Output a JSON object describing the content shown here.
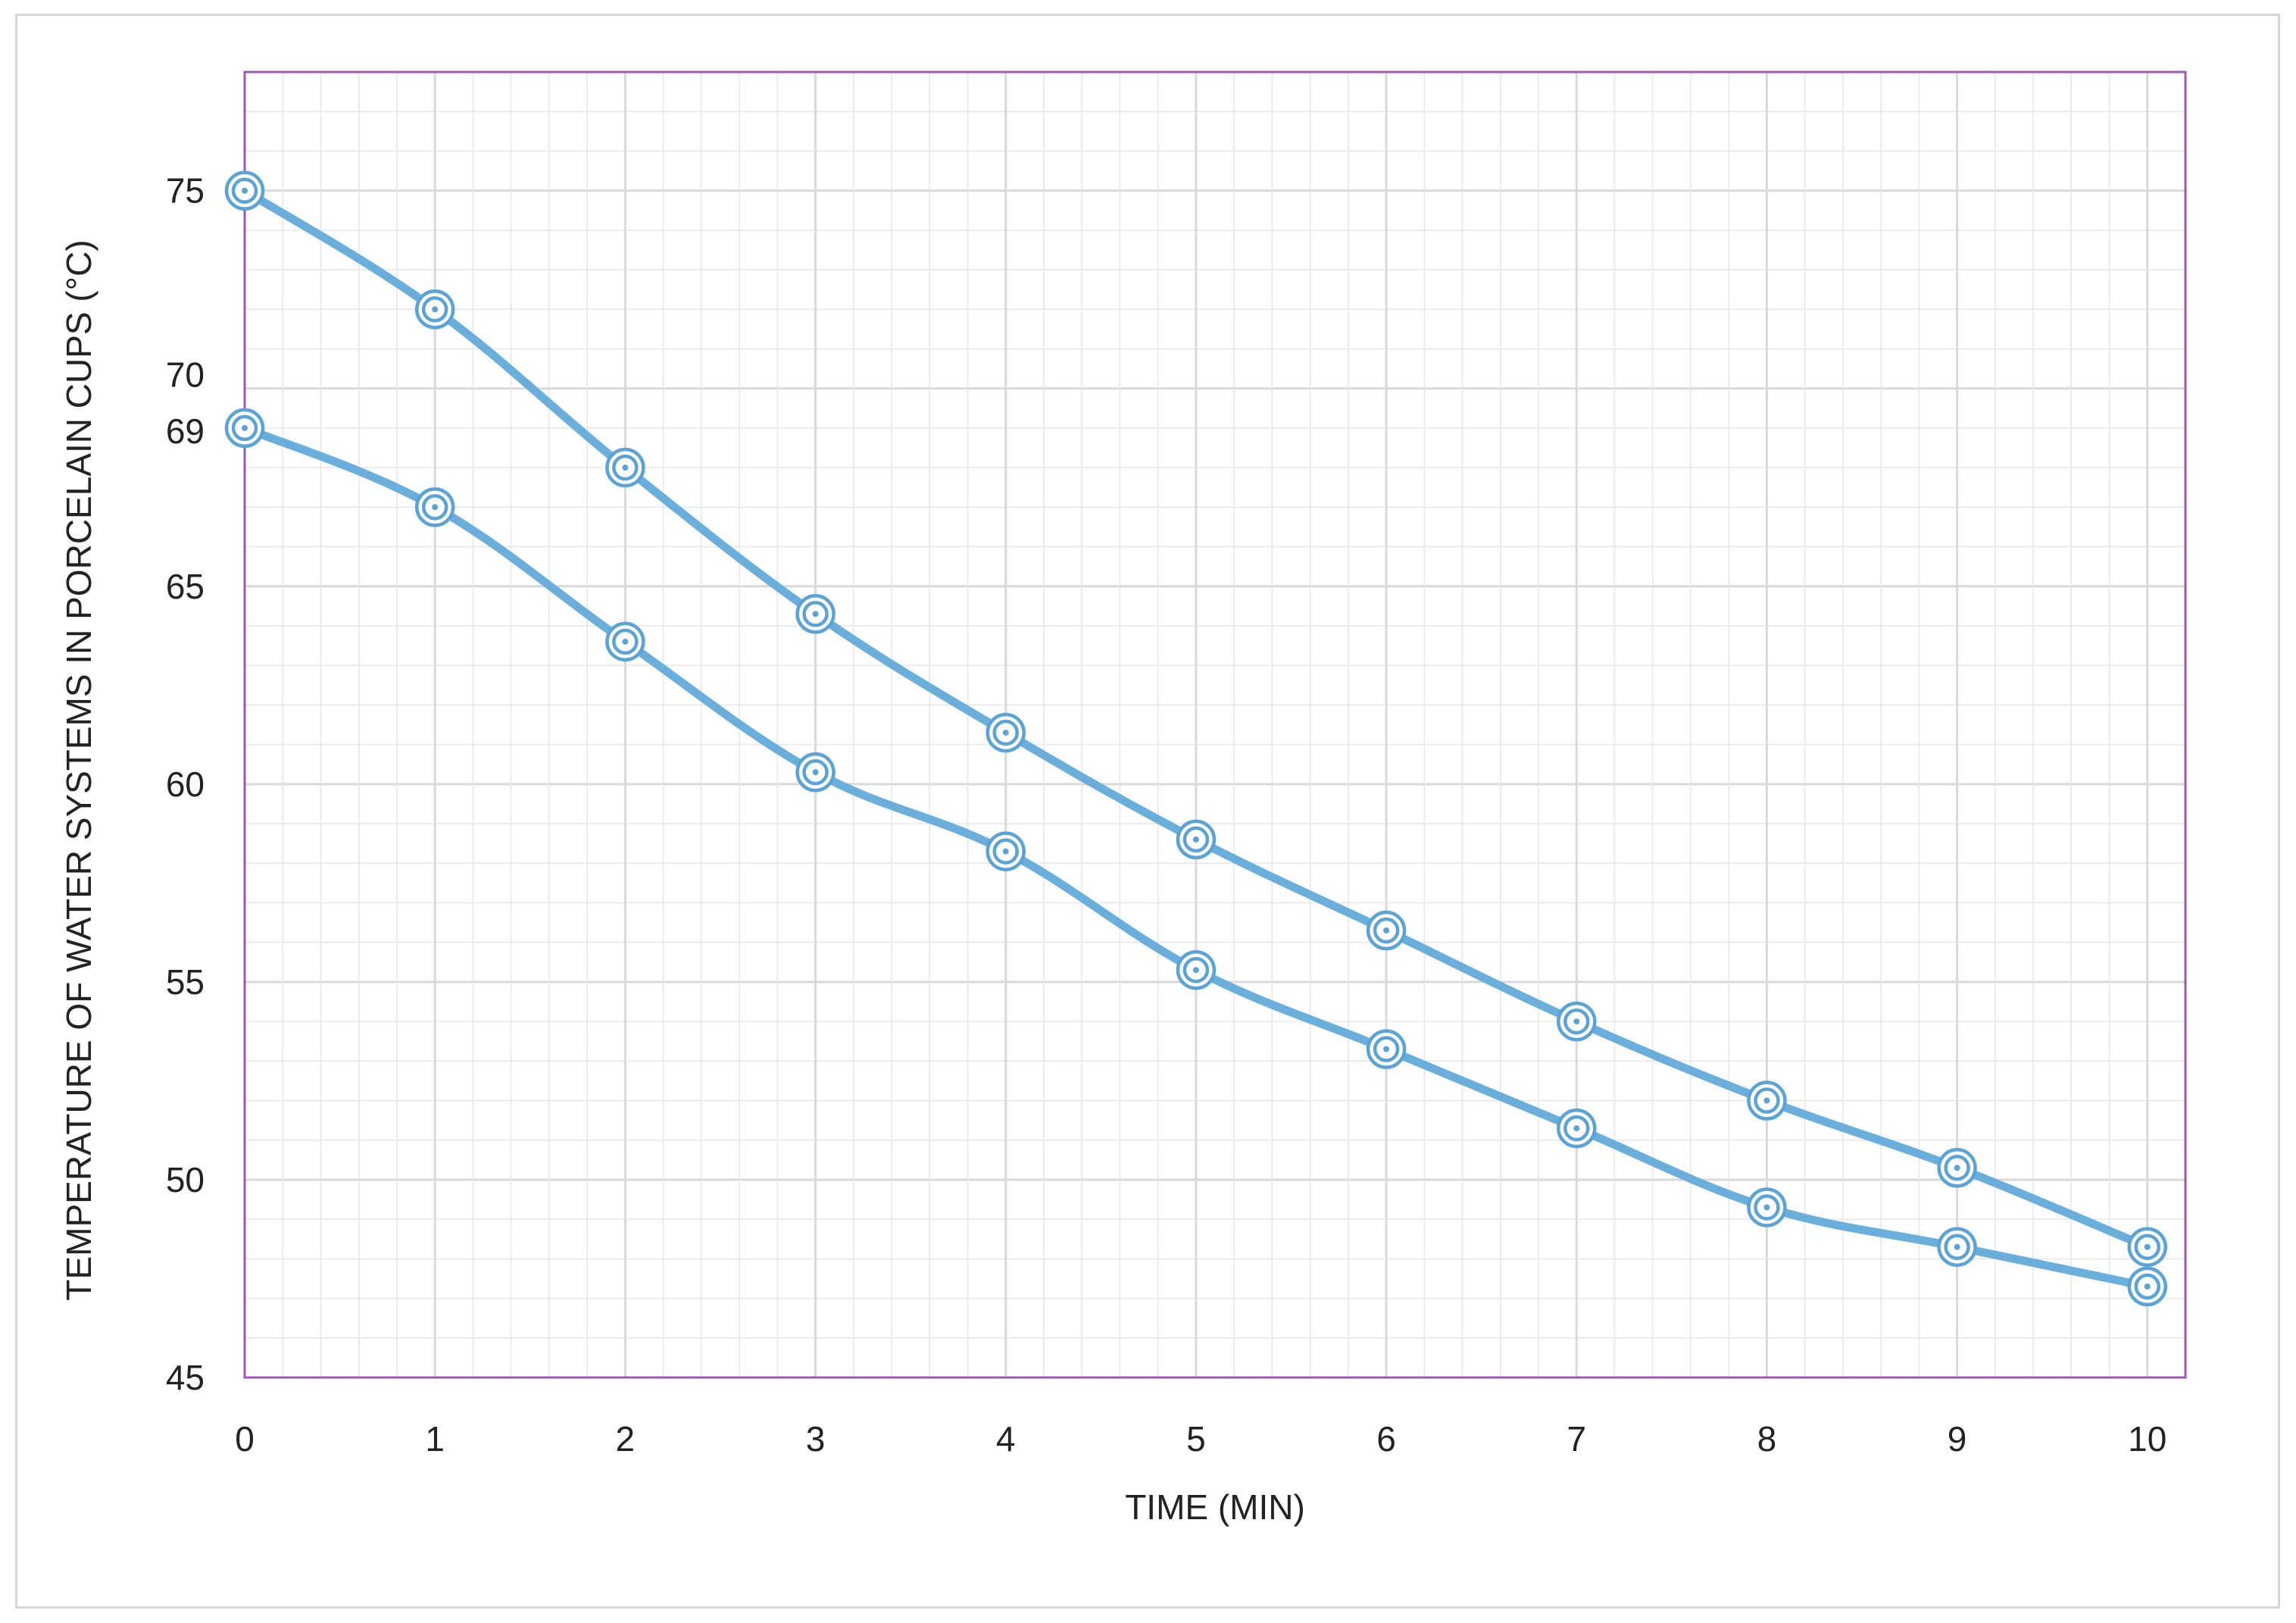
{
  "chart_data": {
    "type": "line",
    "title": "",
    "xlabel": "TIME (MIN)",
    "ylabel": "TEMPERATURE OF WATER SYSTEMS IN PORCELAIN CUPS (°C)",
    "x": [
      0,
      1,
      2,
      3,
      4,
      5,
      6,
      7,
      8,
      9,
      10
    ],
    "xlim": [
      0,
      10.2
    ],
    "ylim": [
      45,
      78
    ],
    "yticks": [
      45,
      50,
      55,
      60,
      65,
      69,
      70,
      75
    ],
    "grid": true,
    "legend": "none",
    "series": [
      {
        "values": [
          75,
          72,
          68,
          64.3,
          61.3,
          58.6,
          56.3,
          54,
          52,
          50.3,
          48.3
        ]
      },
      {
        "values": [
          69,
          67,
          63.6,
          60.3,
          58.3,
          55.3,
          53.3,
          51.3,
          49.3,
          48.3,
          47.3
        ]
      }
    ],
    "colors": {
      "line": "#6aaedc",
      "marker": "#5aa3d6",
      "frame": "#9b59b6"
    }
  }
}
